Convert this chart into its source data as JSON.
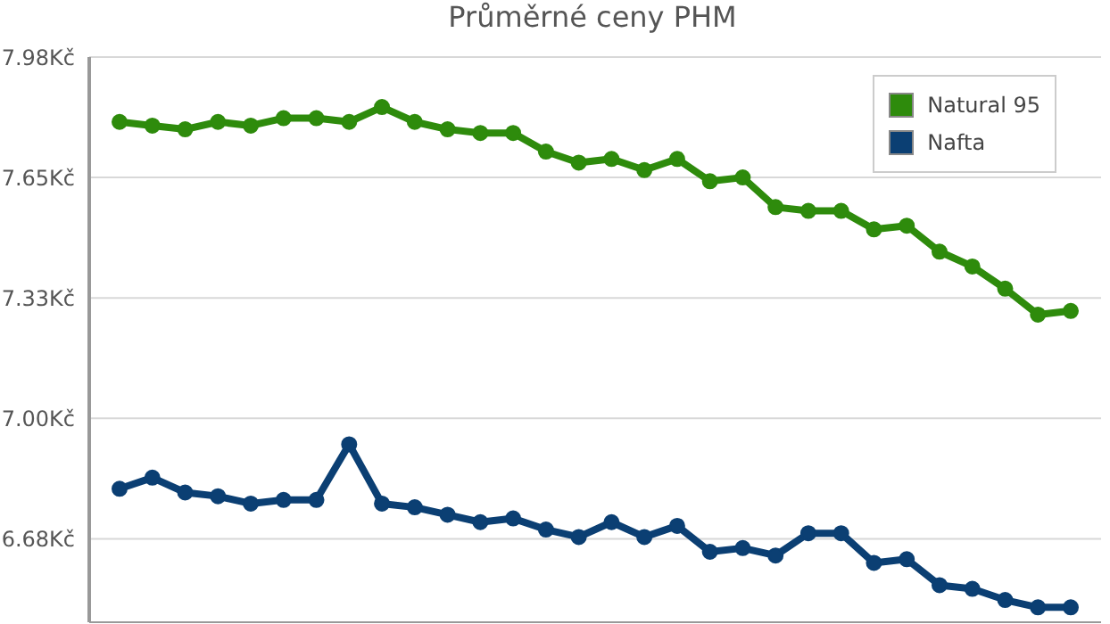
{
  "chart_data": {
    "type": "line",
    "title": "Průměrné ceny PHM",
    "categories": [
      null,
      null,
      null,
      null,
      null,
      null,
      null,
      null,
      null,
      null,
      null,
      null,
      null,
      null,
      null,
      null,
      null,
      null,
      null,
      null,
      null,
      null,
      null,
      null,
      null,
      null,
      null,
      null,
      null,
      null
    ],
    "ylim": [
      6.45,
      7.975
    ],
    "yticks": [
      {
        "value": 6.675,
        "label": "6.68Kč"
      },
      {
        "value": 7.0,
        "label": "7.00Kč"
      },
      {
        "value": 7.325,
        "label": "7.33Kč"
      },
      {
        "value": 7.65,
        "label": "7.65Kč"
      },
      {
        "value": 7.975,
        "label": "7.98Kč"
      }
    ],
    "series": [
      {
        "name": "Natural 95",
        "color": "#2e8b0c",
        "values": [
          7.8,
          7.79,
          7.78,
          7.8,
          7.79,
          7.81,
          7.81,
          7.8,
          7.84,
          7.8,
          7.78,
          7.77,
          7.77,
          7.72,
          7.69,
          7.7,
          7.67,
          7.7,
          7.64,
          7.65,
          7.57,
          7.56,
          7.56,
          7.51,
          7.52,
          7.45,
          7.41,
          7.35,
          7.28,
          7.29
        ]
      },
      {
        "name": "Nafta",
        "color": "#0b3f73",
        "values": [
          6.81,
          6.84,
          6.8,
          6.79,
          6.77,
          6.78,
          6.78,
          6.93,
          6.77,
          6.76,
          6.74,
          6.72,
          6.73,
          6.7,
          6.68,
          6.72,
          6.68,
          6.71,
          6.64,
          6.65,
          6.63,
          6.69,
          6.69,
          6.61,
          6.62,
          6.55,
          6.54,
          6.51,
          6.49,
          6.49
        ]
      }
    ],
    "grid": "y",
    "legend": "top right",
    "marker": "circle",
    "line_style": "solid",
    "tick_labels": "y"
  }
}
